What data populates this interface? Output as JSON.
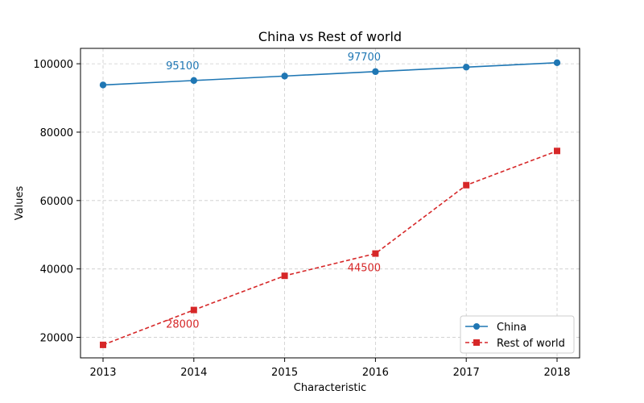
{
  "chart_data": {
    "type": "line",
    "title": "China vs Rest of world",
    "xlabel": "Characteristic",
    "ylabel": "Values",
    "categories": [
      "2013",
      "2014",
      "2015",
      "2016",
      "2017",
      "2018"
    ],
    "ylim": [
      14000,
      104500
    ],
    "yticks": [
      "20000",
      "40000",
      "60000",
      "80000",
      "100000"
    ],
    "grid": true,
    "legend_position": "bottom-right",
    "series": [
      {
        "name": "China",
        "values": [
          93800,
          95100,
          96400,
          97700,
          99000,
          100300
        ],
        "color": "#1f77b4",
        "marker": "circle",
        "line_style": "solid",
        "labels": [
          {
            "index": 1,
            "text": "95100",
            "placement": "above"
          },
          {
            "index": 3,
            "text": "97700",
            "placement": "above"
          }
        ]
      },
      {
        "name": "Rest of world",
        "values": [
          17800,
          28000,
          38000,
          44500,
          64500,
          74500
        ],
        "color": "#d62728",
        "marker": "square",
        "line_style": "dashed",
        "labels": [
          {
            "index": 1,
            "text": "28000",
            "placement": "below"
          },
          {
            "index": 3,
            "text": "44500",
            "placement": "below"
          }
        ]
      }
    ]
  }
}
